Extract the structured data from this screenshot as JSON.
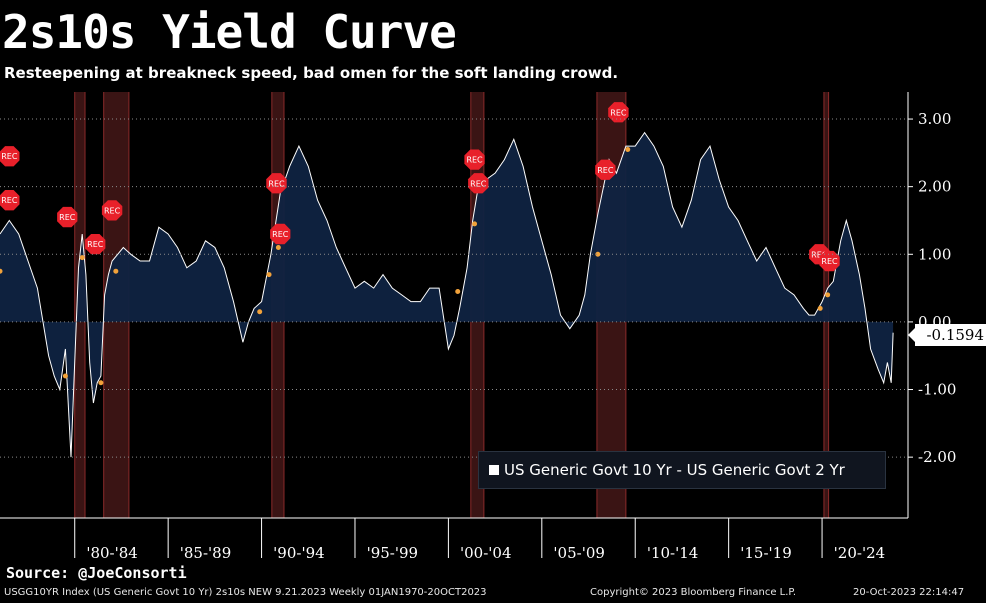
{
  "title": "2s10s Yield Curve",
  "subtitle": "Resteepening at breakneck speed, bad omen for the soft landing crowd.",
  "source": "Source: @JoeConsorti",
  "footer": {
    "left": "USGG10YR Index (US Generic Govt 10 Yr) 2s10s NEW 9.21.2023  Weekly 01JAN1970-20OCT2023",
    "middle": "Copyright© 2023 Bloomberg Finance L.P.",
    "right": "20-Oct-2023 22:14:47"
  },
  "last_value": "-0.1594",
  "colors": {
    "background": "#000000",
    "area_fill": "#0f2341",
    "line": "#ffffff",
    "recession_band": "#3a1414",
    "recession_edge": "#8a2a2a",
    "rec_marker": "#e8202a",
    "dot_marker": "#f2a23a"
  },
  "chart_data": {
    "type": "area",
    "title": "2s10s Yield Curve",
    "ylim": [
      -2.9,
      3.4
    ],
    "xlim": [
      1976.0,
      2024.6
    ],
    "y_ticks": [
      "3.00",
      "2.00",
      "1.00",
      "0.00",
      "-1.00",
      "-2.00"
    ],
    "y_tick_values": [
      3,
      2,
      1,
      0,
      -1,
      -2
    ],
    "x_tick_labels": [
      "'80-'84",
      "'85-'89",
      "'90-'94",
      "'95-'99",
      "'00-'04",
      "'05-'09",
      "'10-'14",
      "'15-'19",
      "'20-'24"
    ],
    "x_tick_centers": [
      1982.0,
      1987.0,
      1992.0,
      1997.0,
      2002.0,
      2007.0,
      2012.0,
      2017.0,
      2022.0
    ],
    "grid": true,
    "legend_position": "bottom-right",
    "series": [
      {
        "name": "US Generic Govt 10 Yr - US Generic Govt 2 Yr",
        "x": [
          1976.0,
          1976.5,
          1977.0,
          1977.5,
          1978.0,
          1978.3,
          1978.6,
          1978.9,
          1979.2,
          1979.5,
          1979.8,
          1980.0,
          1980.2,
          1980.4,
          1980.6,
          1980.8,
          1981.0,
          1981.2,
          1981.4,
          1981.6,
          1981.8,
          1982.0,
          1982.3,
          1982.6,
          1983.0,
          1983.5,
          1984.0,
          1984.5,
          1985.0,
          1985.5,
          1986.0,
          1986.5,
          1987.0,
          1987.5,
          1988.0,
          1988.5,
          1989.0,
          1989.3,
          1989.6,
          1990.0,
          1990.5,
          1991.0,
          1991.5,
          1992.0,
          1992.5,
          1993.0,
          1993.5,
          1994.0,
          1994.5,
          1995.0,
          1995.5,
          1996.0,
          1996.5,
          1997.0,
          1997.5,
          1998.0,
          1998.5,
          1999.0,
          1999.5,
          2000.0,
          2000.3,
          2000.6,
          2001.0,
          2001.3,
          2001.6,
          2002.0,
          2002.5,
          2003.0,
          2003.5,
          2004.0,
          2004.5,
          2005.0,
          2005.5,
          2006.0,
          2006.5,
          2007.0,
          2007.3,
          2007.6,
          2008.0,
          2008.3,
          2008.6,
          2009.0,
          2009.5,
          2010.0,
          2010.5,
          2011.0,
          2011.5,
          2012.0,
          2012.5,
          2013.0,
          2013.5,
          2014.0,
          2014.5,
          2015.0,
          2015.5,
          2016.0,
          2016.5,
          2017.0,
          2017.5,
          2018.0,
          2018.5,
          2019.0,
          2019.3,
          2019.6,
          2020.0,
          2020.3,
          2020.6,
          2021.0,
          2021.3,
          2021.6,
          2022.0,
          2022.3,
          2022.6,
          2023.0,
          2023.3,
          2023.5,
          2023.7,
          2023.8
        ],
        "y": [
          1.3,
          1.5,
          1.3,
          0.9,
          0.5,
          0.0,
          -0.5,
          -0.8,
          -1.0,
          -0.4,
          -2.0,
          -0.6,
          0.8,
          1.3,
          0.7,
          -0.6,
          -1.2,
          -0.9,
          -0.8,
          0.4,
          0.7,
          0.9,
          1.0,
          1.1,
          1.0,
          0.9,
          0.9,
          1.4,
          1.3,
          1.1,
          0.8,
          0.9,
          1.2,
          1.1,
          0.8,
          0.3,
          -0.3,
          0.0,
          0.2,
          0.3,
          1.0,
          1.9,
          2.3,
          2.6,
          2.3,
          1.8,
          1.5,
          1.1,
          0.8,
          0.5,
          0.6,
          0.5,
          0.7,
          0.5,
          0.4,
          0.3,
          0.3,
          0.5,
          0.5,
          -0.4,
          -0.2,
          0.2,
          0.8,
          1.5,
          2.0,
          2.1,
          2.2,
          2.4,
          2.7,
          2.3,
          1.7,
          1.2,
          0.7,
          0.1,
          -0.1,
          0.1,
          0.4,
          1.0,
          1.6,
          2.0,
          2.4,
          2.2,
          2.6,
          2.6,
          2.8,
          2.6,
          2.3,
          1.7,
          1.4,
          1.8,
          2.4,
          2.6,
          2.1,
          1.7,
          1.5,
          1.2,
          0.9,
          1.1,
          0.8,
          0.5,
          0.4,
          0.2,
          0.1,
          0.1,
          0.3,
          0.5,
          0.6,
          1.2,
          1.5,
          1.2,
          0.7,
          0.2,
          -0.4,
          -0.7,
          -0.9,
          -0.6,
          -0.9,
          -0.16
        ]
      }
    ],
    "recessions": [
      {
        "start": 1980.0,
        "end": 1980.55
      },
      {
        "start": 1981.55,
        "end": 1982.9
      },
      {
        "start": 1990.55,
        "end": 1991.2
      },
      {
        "start": 2001.2,
        "end": 2001.9
      },
      {
        "start": 2007.95,
        "end": 2009.5
      },
      {
        "start": 2020.1,
        "end": 2020.35
      }
    ],
    "rec_markers": [
      {
        "label": "REC",
        "x": 1976.5,
        "y": 2.45
      },
      {
        "label": "REC",
        "x": 1976.5,
        "y": 1.8
      },
      {
        "label": "REC",
        "x": 1979.6,
        "y": 1.55
      },
      {
        "label": "REC",
        "x": 1981.1,
        "y": 1.15
      },
      {
        "label": "REC",
        "x": 1982.0,
        "y": 1.65
      },
      {
        "label": "REC",
        "x": 1990.8,
        "y": 2.05
      },
      {
        "label": "REC",
        "x": 1991.0,
        "y": 1.3
      },
      {
        "label": "REC",
        "x": 2001.4,
        "y": 2.4
      },
      {
        "label": "REC",
        "x": 2001.6,
        "y": 2.05
      },
      {
        "label": "REC",
        "x": 2008.4,
        "y": 2.25
      },
      {
        "label": "REC",
        "x": 2009.1,
        "y": 3.1
      },
      {
        "label": "REC",
        "x": 2019.85,
        "y": 1.0
      },
      {
        "label": "REC",
        "x": 2020.4,
        "y": 0.9
      }
    ],
    "dot_markers": [
      {
        "x": 1976.0,
        "y": 0.75
      },
      {
        "x": 1979.5,
        "y": -0.8
      },
      {
        "x": 1980.4,
        "y": 0.95
      },
      {
        "x": 1981.4,
        "y": -0.9
      },
      {
        "x": 1982.2,
        "y": 0.75
      },
      {
        "x": 1989.9,
        "y": 0.15
      },
      {
        "x": 1990.4,
        "y": 0.7
      },
      {
        "x": 1990.9,
        "y": 1.1
      },
      {
        "x": 2000.5,
        "y": 0.45
      },
      {
        "x": 2001.4,
        "y": 1.45
      },
      {
        "x": 2001.8,
        "y": 2.05
      },
      {
        "x": 2008.0,
        "y": 1.0
      },
      {
        "x": 2009.6,
        "y": 2.55
      },
      {
        "x": 2019.9,
        "y": 0.2
      },
      {
        "x": 2020.3,
        "y": 0.4
      }
    ],
    "last_value": -0.1594
  }
}
